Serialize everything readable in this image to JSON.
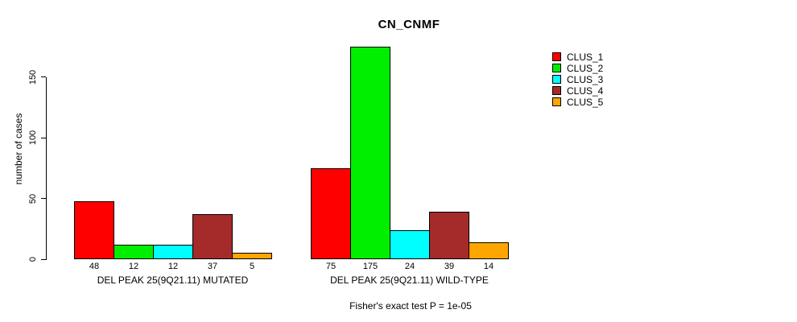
{
  "title": "CN_CNMF",
  "ylabel": "number of cases",
  "footer": "Fisher's exact test P = 1e-05",
  "chart_data": {
    "type": "bar",
    "title": "CN_CNMF",
    "xlabel": "",
    "ylabel": "number of cases",
    "ylim": [
      0,
      183
    ],
    "yticks": [
      0,
      50,
      100,
      150
    ],
    "grid": false,
    "legend_position": "right-inside",
    "series": [
      {
        "name": "CLUS_1",
        "color": "#FF0000",
        "values": [
          48,
          75
        ]
      },
      {
        "name": "CLUS_2",
        "color": "#00EE00",
        "values": [
          12,
          175
        ]
      },
      {
        "name": "CLUS_3",
        "color": "#00FFFF",
        "values": [
          12,
          24
        ]
      },
      {
        "name": "CLUS_4",
        "color": "#A52A2A",
        "values": [
          37,
          39
        ]
      },
      {
        "name": "CLUS_5",
        "color": "#FFA500",
        "values": [
          5,
          14
        ]
      }
    ],
    "groups": [
      {
        "label": "DEL PEAK 25(9Q21.11) MUTATED",
        "values": [
          48,
          12,
          12,
          37,
          5
        ]
      },
      {
        "label": "DEL PEAK 25(9Q21.11) WILD-TYPE",
        "values": [
          75,
          175,
          24,
          39,
          14
        ]
      }
    ],
    "bar_value_labels_shown": true
  }
}
